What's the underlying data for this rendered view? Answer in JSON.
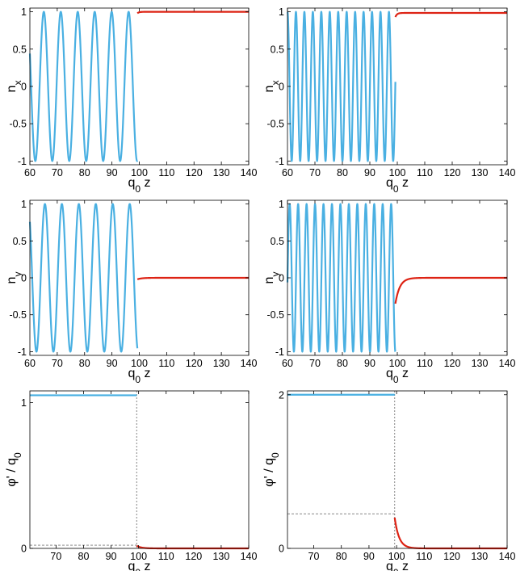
{
  "colors": {
    "inside": "#4ab0e2",
    "outside": "#dd2314",
    "guide": "#777777",
    "axis": "#000000"
  },
  "chart_data": [
    {
      "type": "line",
      "panel": "nx-left",
      "xlabel": "q_0 z",
      "ylabel": "n_x",
      "xlim": [
        60,
        140
      ],
      "ylim": [
        -1.05,
        1.05
      ],
      "xticks": [
        60,
        70,
        80,
        90,
        100,
        110,
        120,
        130,
        140
      ],
      "yticks": [
        -1,
        -0.5,
        0,
        0.5,
        1
      ],
      "series": [
        {
          "kind": "cosine",
          "role": "inside",
          "x_range": [
            60,
            99.3
          ],
          "period": 6.2,
          "phase_x": 58.9
        },
        {
          "kind": "constant",
          "role": "outside",
          "x_range": [
            99.3,
            140
          ],
          "value": 1.0,
          "rise_from": 0.98
        }
      ]
    },
    {
      "type": "line",
      "panel": "nx-right",
      "xlabel": "q_0 z",
      "ylabel": "n_x",
      "xlim": [
        60,
        140
      ],
      "ylim": [
        -1.05,
        1.05
      ],
      "xticks": [
        60,
        70,
        80,
        90,
        100,
        110,
        120,
        130,
        140
      ],
      "yticks": [
        -1,
        -0.5,
        0,
        0.5,
        1
      ],
      "series": [
        {
          "kind": "cosine",
          "role": "inside",
          "x_range": [
            60,
            99.3
          ],
          "period": 3.08,
          "phase_x": 60.0
        },
        {
          "kind": "constant",
          "role": "outside",
          "x_range": [
            99.3,
            140
          ],
          "value": 0.985,
          "rise_from": 0.93
        }
      ]
    },
    {
      "type": "line",
      "panel": "ny-left",
      "xlabel": "q_0 z",
      "ylabel": "n_y",
      "xlim": [
        60,
        140
      ],
      "ylim": [
        -1.05,
        1.05
      ],
      "xticks": [
        60,
        70,
        80,
        90,
        100,
        110,
        120,
        130,
        140
      ],
      "yticks": [
        -1,
        -0.5,
        0,
        0.5,
        1
      ],
      "series": [
        {
          "kind": "cosine",
          "role": "inside",
          "x_range": [
            60,
            99.3
          ],
          "period": 6.2,
          "phase_x": 59.3
        },
        {
          "kind": "relax",
          "role": "outside",
          "x_range": [
            99.3,
            140
          ],
          "start": -0.02,
          "end": 0.0
        }
      ]
    },
    {
      "type": "line",
      "panel": "ny-right",
      "xlabel": "q_0 z",
      "ylabel": "n_y",
      "xlim": [
        60,
        140
      ],
      "ylim": [
        -1.05,
        1.05
      ],
      "xticks": [
        60,
        70,
        80,
        90,
        100,
        110,
        120,
        130,
        140
      ],
      "yticks": [
        -1,
        -0.5,
        0,
        0.5,
        1
      ],
      "series": [
        {
          "kind": "cosine",
          "role": "inside",
          "x_range": [
            60,
            99.3
          ],
          "period": 3.08,
          "phase_x": 60.8
        },
        {
          "kind": "relax",
          "role": "outside",
          "x_range": [
            99.3,
            140
          ],
          "start": -0.35,
          "end": 0.0
        }
      ]
    },
    {
      "type": "line",
      "panel": "phi-left",
      "xlabel": "q_0 z",
      "ylabel": "φ' / q_0",
      "xlim": [
        60.5,
        140
      ],
      "ylim": [
        0,
        1.08
      ],
      "xticks": [
        70,
        80,
        90,
        100,
        110,
        120,
        130,
        140
      ],
      "yticks": [
        0,
        1
      ],
      "vline_x": 99.3,
      "hline_y": 0.022,
      "series": [
        {
          "kind": "constant",
          "role": "inside",
          "x_range": [
            60.5,
            99.3
          ],
          "value": 1.05
        },
        {
          "kind": "relax",
          "role": "outside",
          "x_range": [
            99.3,
            140
          ],
          "start": 0.018,
          "end": 0.0
        }
      ]
    },
    {
      "type": "line",
      "panel": "phi-right",
      "xlabel": "q_0 z",
      "ylabel": "φ' / q_0",
      "xlim": [
        60.5,
        140
      ],
      "ylim": [
        0,
        2.05
      ],
      "xticks": [
        70,
        80,
        90,
        100,
        110,
        120,
        130,
        140
      ],
      "yticks": [
        0,
        2
      ],
      "vline_x": 99.3,
      "hline_y": 0.45,
      "series": [
        {
          "kind": "constant",
          "role": "inside",
          "x_range": [
            60.5,
            99.3
          ],
          "value": 2.0
        },
        {
          "kind": "relax",
          "role": "outside",
          "x_range": [
            99.3,
            140
          ],
          "start": 0.4,
          "end": 0.0
        }
      ]
    }
  ]
}
